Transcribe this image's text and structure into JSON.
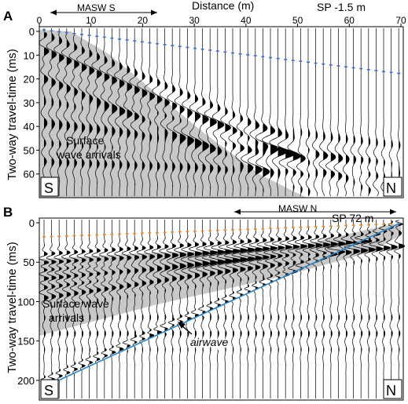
{
  "panels": [
    {
      "letter": "A",
      "x_axis_title": "Distance (m)",
      "y_axis_title": "Two-way travel-time (ms)",
      "x_ticks": [
        "0",
        "10",
        "20",
        "30",
        "40",
        "50",
        "60",
        "70"
      ],
      "y_ticks": [
        "0",
        "10",
        "20",
        "30",
        "40",
        "50",
        "60"
      ],
      "spread_label": "MASW S",
      "shot_label": "SP -1.5 m",
      "zone_label_line1": "Surface",
      "zone_label_line2": "wave arrivals",
      "left_end": "S",
      "right_end": "N"
    },
    {
      "letter": "B",
      "y_axis_title": "Two-way travel-time (ms)",
      "y_ticks": [
        "0",
        "50",
        "100",
        "150",
        "200"
      ],
      "spread_label": "MASW N",
      "shot_label": "SP 72 m",
      "zone_label_line1": "Surface wave",
      "zone_label_line2": "arrivals",
      "airwave_label": "airwave",
      "left_end": "S",
      "right_end": "N"
    }
  ],
  "colors": {
    "shading": "#c8c8c8",
    "first_break_A": "#3a6fd8",
    "first_break_B": "#f08a24",
    "airwave_line": "#2a86c8",
    "trace": "#000000"
  }
}
